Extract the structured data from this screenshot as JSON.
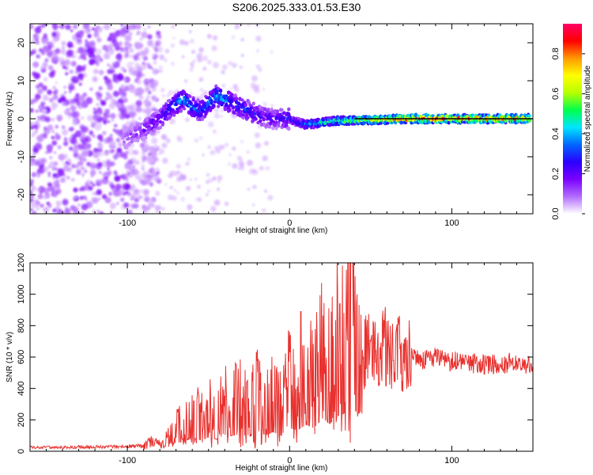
{
  "title": "S206.2025.333.01.53.E30",
  "colors": {
    "signal_line": "#e8312e",
    "axis": "#000000",
    "background": "#ffffff"
  },
  "chart_data": [
    {
      "type": "heatmap",
      "name": "spectrogram",
      "xlabel": "Height of straight line (km)",
      "ylabel": "Frequency (Hz)",
      "xlim": [
        -160,
        150
      ],
      "ylim": [
        -25,
        25
      ],
      "xticks": [
        -100,
        0,
        100
      ],
      "yticks": [
        -20,
        -10,
        0,
        10,
        20
      ],
      "colorbar": {
        "label": "Normalized spectral amplitude",
        "range": [
          0,
          0.95
        ],
        "ticks": [
          0.0,
          0.2,
          0.4,
          0.6,
          0.8
        ],
        "tick_labels": [
          "0.0",
          "0.2",
          "0.4",
          "0.6",
          "0.8"
        ],
        "colormap": [
          "#ffffff",
          "#b36bff",
          "#7a00ff",
          "#2a00ff",
          "#0066ff",
          "#00e5ff",
          "#00ff4c",
          "#b8ff00",
          "#ffff00",
          "#ff9900",
          "#ff0000",
          "#ff0066"
        ]
      },
      "ridge": {
        "x": [
          -100,
          -95,
          -90,
          -85,
          -80,
          -75,
          -70,
          -65,
          -60,
          -55,
          -50,
          -45,
          -40,
          -35,
          -30,
          -25,
          -20,
          -15,
          -10,
          -5,
          0,
          5,
          10,
          20,
          30,
          40,
          50,
          60,
          70,
          80,
          90,
          100,
          110,
          120,
          130,
          140,
          150
        ],
        "frequency": [
          -5,
          -4,
          -3,
          -1.5,
          0,
          2,
          4,
          5,
          3,
          2,
          4,
          6,
          5,
          4,
          3,
          2,
          1,
          0.5,
          0,
          0,
          0,
          -1,
          -1.5,
          -1,
          -0.5,
          -0.5,
          -0.3,
          -0.2,
          0,
          0,
          0,
          0,
          0,
          0,
          0,
          0,
          0
        ],
        "amplitude": [
          0.12,
          0.15,
          0.18,
          0.2,
          0.25,
          0.3,
          0.35,
          0.4,
          0.35,
          0.3,
          0.35,
          0.42,
          0.38,
          0.33,
          0.3,
          0.28,
          0.25,
          0.22,
          0.22,
          0.25,
          0.28,
          0.33,
          0.4,
          0.5,
          0.58,
          0.65,
          0.72,
          0.78,
          0.85,
          0.9,
          0.92,
          0.9,
          0.88,
          0.86,
          0.84,
          0.8,
          0.75
        ]
      }
    },
    {
      "type": "line",
      "name": "snr",
      "xlabel": "Height of straight line (km)",
      "ylabel": "SNR (10 * v/v)",
      "xlim": [
        -160,
        150
      ],
      "ylim": [
        0,
        1200
      ],
      "xticks": [
        -100,
        0,
        100
      ],
      "yticks": [
        0,
        200,
        400,
        600,
        800,
        1000,
        1200
      ],
      "series": [
        {
          "name": "SNR",
          "x": [
            -160,
            -140,
            -120,
            -100,
            -90,
            -85,
            -80,
            -75,
            -70,
            -65,
            -60,
            -55,
            -50,
            -45,
            -40,
            -35,
            -30,
            -25,
            -20,
            -15,
            -10,
            -5,
            0,
            5,
            10,
            15,
            20,
            25,
            30,
            35,
            40,
            45,
            50,
            55,
            60,
            65,
            70,
            75,
            80,
            90,
            100,
            110,
            120,
            130,
            140,
            150
          ],
          "y": [
            25,
            25,
            28,
            30,
            35,
            60,
            40,
            80,
            150,
            180,
            250,
            200,
            250,
            220,
            300,
            280,
            320,
            250,
            380,
            300,
            350,
            280,
            420,
            380,
            480,
            420,
            600,
            500,
            650,
            700,
            750,
            650,
            650,
            600,
            680,
            650,
            620,
            600,
            580,
            590,
            570,
            570,
            550,
            550,
            570,
            540
          ],
          "peaks": [
            {
              "x": -59,
              "y": 320
            },
            {
              "x": -33,
              "y": 550
            },
            {
              "x": 7,
              "y": 890
            },
            {
              "x": 31,
              "y": 940
            },
            {
              "x": 38,
              "y": 1200
            }
          ]
        }
      ]
    }
  ]
}
